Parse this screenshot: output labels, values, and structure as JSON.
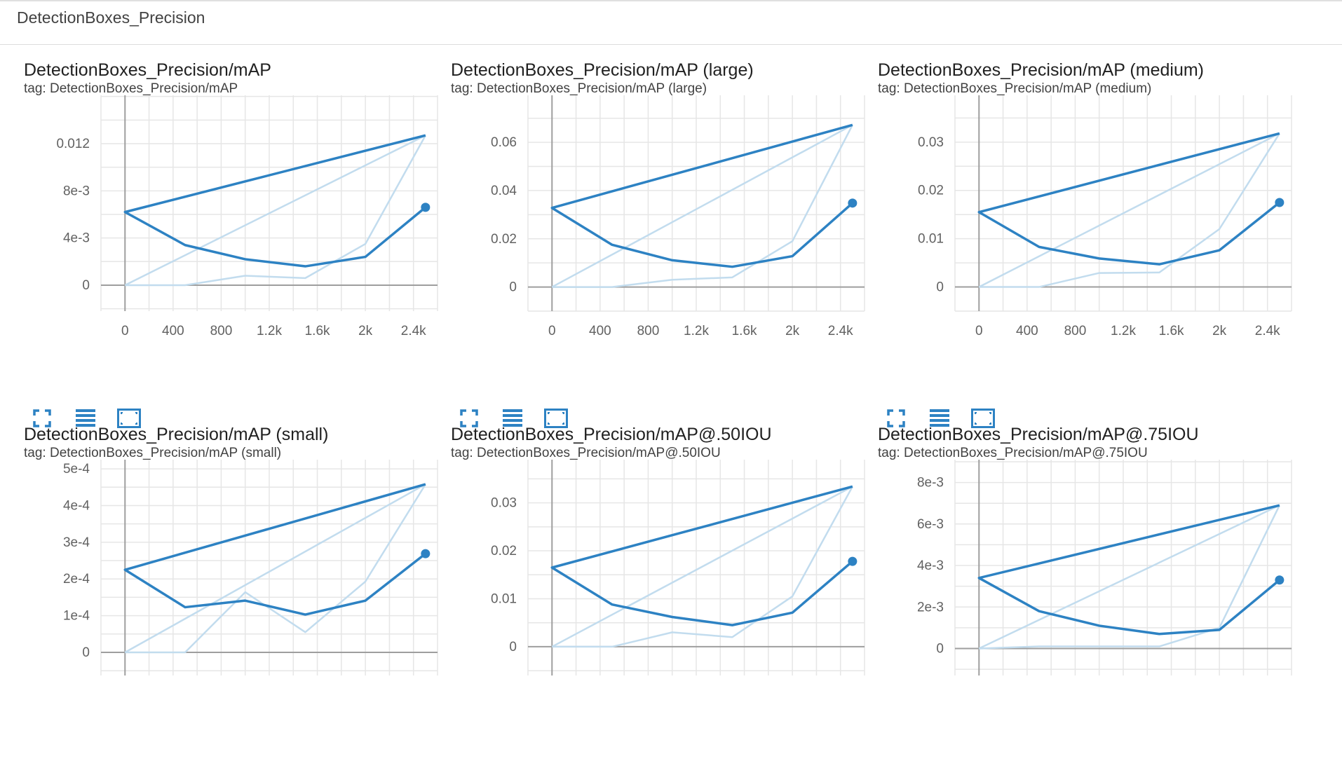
{
  "section": {
    "title": "DetectionBoxes_Precision"
  },
  "toolbar": {
    "icons": [
      "expand-icon",
      "data-table-icon",
      "fit-domain-icon"
    ]
  },
  "colors": {
    "series": "#2d82c3",
    "raw": "#c2dcee",
    "grid": "#e6e6e6",
    "axis": "#9e9e9e"
  },
  "chart_data": [
    {
      "type": "line",
      "title": "DetectionBoxes_Precision/mAP",
      "tag": "tag: DetectionBoxes_Precision/mAP",
      "x_ticks": [
        {
          "v": 0,
          "label": "0"
        },
        {
          "v": 400,
          "label": "400"
        },
        {
          "v": 800,
          "label": "800"
        },
        {
          "v": 1200,
          "label": "1.2k"
        },
        {
          "v": 1600,
          "label": "1.6k"
        },
        {
          "v": 2000,
          "label": "2k"
        },
        {
          "v": 2400,
          "label": "2.4k"
        }
      ],
      "y_ticks": [
        {
          "v": 0,
          "label": "0"
        },
        {
          "v": 0.004,
          "label": "4e-3"
        },
        {
          "v": 0.008,
          "label": "8e-3"
        },
        {
          "v": 0.012,
          "label": "0.012"
        }
      ],
      "xlim": [
        -200,
        2600
      ],
      "ylim": [
        -0.0022,
        0.0161
      ],
      "smoothed": {
        "x": [
          2500,
          0,
          500,
          1000,
          1500,
          2000,
          2500
        ],
        "y": [
          0.0127,
          0.0062,
          0.0034,
          0.0022,
          0.0016,
          0.0024,
          0.0066
        ]
      },
      "raw": [
        {
          "x": [
            0,
            2500
          ],
          "y": [
            0,
            0.0127
          ]
        },
        {
          "x": [
            0,
            500,
            1000,
            1500,
            2000,
            2500
          ],
          "y": [
            0,
            0,
            0.0008,
            0.0006,
            0.0035,
            0.0127
          ]
        }
      ]
    },
    {
      "type": "line",
      "title": "DetectionBoxes_Precision/mAP (large)",
      "tag": "tag: DetectionBoxes_Precision/mAP (large)",
      "x_ticks": [
        {
          "v": 0,
          "label": "0"
        },
        {
          "v": 400,
          "label": "400"
        },
        {
          "v": 800,
          "label": "800"
        },
        {
          "v": 1200,
          "label": "1.2k"
        },
        {
          "v": 1600,
          "label": "1.6k"
        },
        {
          "v": 2000,
          "label": "2k"
        },
        {
          "v": 2400,
          "label": "2.4k"
        }
      ],
      "y_ticks": [
        {
          "v": 0,
          "label": "0"
        },
        {
          "v": 0.02,
          "label": "0.02"
        },
        {
          "v": 0.04,
          "label": "0.04"
        },
        {
          "v": 0.06,
          "label": "0.06"
        }
      ],
      "xlim": [
        -200,
        2600
      ],
      "ylim": [
        -0.01,
        0.0795
      ],
      "smoothed": {
        "x": [
          2500,
          0,
          500,
          1000,
          1500,
          2000,
          2500
        ],
        "y": [
          0.0672,
          0.0328,
          0.0175,
          0.0111,
          0.0084,
          0.0128,
          0.0348
        ]
      },
      "raw": [
        {
          "x": [
            0,
            2500
          ],
          "y": [
            0,
            0.0672
          ]
        },
        {
          "x": [
            0,
            500,
            1000,
            1500,
            2000,
            2500
          ],
          "y": [
            0,
            0,
            0.003,
            0.004,
            0.019,
            0.0672
          ]
        }
      ]
    },
    {
      "type": "line",
      "title": "DetectionBoxes_Precision/mAP (medium)",
      "tag": "tag: DetectionBoxes_Precision/mAP (medium)",
      "x_ticks": [
        {
          "v": 0,
          "label": "0"
        },
        {
          "v": 400,
          "label": "400"
        },
        {
          "v": 800,
          "label": "800"
        },
        {
          "v": 1200,
          "label": "1.2k"
        },
        {
          "v": 1600,
          "label": "1.6k"
        },
        {
          "v": 2000,
          "label": "2k"
        },
        {
          "v": 2400,
          "label": "2.4k"
        }
      ],
      "y_ticks": [
        {
          "v": 0,
          "label": "0"
        },
        {
          "v": 0.01,
          "label": "0.01"
        },
        {
          "v": 0.02,
          "label": "0.02"
        },
        {
          "v": 0.03,
          "label": "0.03"
        }
      ],
      "xlim": [
        -200,
        2600
      ],
      "ylim": [
        -0.005,
        0.0397
      ],
      "smoothed": {
        "x": [
          2500,
          0,
          500,
          1000,
          1500,
          2000,
          2500
        ],
        "y": [
          0.0318,
          0.0155,
          0.0083,
          0.0059,
          0.0047,
          0.0076,
          0.0175
        ]
      },
      "raw": [
        {
          "x": [
            0,
            2500
          ],
          "y": [
            0,
            0.0318
          ]
        },
        {
          "x": [
            0,
            500,
            1000,
            1500,
            2000,
            2500
          ],
          "y": [
            0,
            0,
            0.0029,
            0.003,
            0.012,
            0.0318
          ]
        }
      ]
    },
    {
      "type": "line",
      "title": "DetectionBoxes_Precision/mAP (small)",
      "tag": "tag: DetectionBoxes_Precision/mAP (small)",
      "x_ticks": [
        {
          "v": 0,
          "label": ""
        },
        {
          "v": 400,
          "label": ""
        },
        {
          "v": 800,
          "label": ""
        },
        {
          "v": 1200,
          "label": ""
        },
        {
          "v": 1600,
          "label": ""
        },
        {
          "v": 2000,
          "label": ""
        },
        {
          "v": 2400,
          "label": ""
        }
      ],
      "y_ticks": [
        {
          "v": 0,
          "label": "0"
        },
        {
          "v": 0.0001,
          "label": "1e-4"
        },
        {
          "v": 0.0002,
          "label": "2e-4"
        },
        {
          "v": 0.0003,
          "label": "3e-4"
        },
        {
          "v": 0.0004,
          "label": "4e-4"
        },
        {
          "v": 0.0005,
          "label": "5e-4"
        }
      ],
      "xlim": [
        -200,
        2600
      ],
      "ylim": [
        -6.3e-05,
        0.000525
      ],
      "smoothed": {
        "x": [
          2500,
          0,
          500,
          1000,
          1500,
          2000,
          2500
        ],
        "y": [
          0.000458,
          0.000225,
          0.000123,
          0.000141,
          0.000103,
          0.000141,
          0.000269
        ]
      },
      "raw": [
        {
          "x": [
            0,
            2500
          ],
          "y": [
            0,
            0.000458
          ]
        },
        {
          "x": [
            0,
            500,
            1000,
            1500,
            2000,
            2500
          ],
          "y": [
            0,
            0,
            0.000164,
            5.5e-05,
            0.000193,
            0.000458
          ]
        }
      ]
    },
    {
      "type": "line",
      "title": "DetectionBoxes_Precision/mAP@.50IOU",
      "tag": "tag: DetectionBoxes_Precision/mAP@.50IOU",
      "x_ticks": [
        {
          "v": 0,
          "label": ""
        },
        {
          "v": 400,
          "label": ""
        },
        {
          "v": 800,
          "label": ""
        },
        {
          "v": 1200,
          "label": ""
        },
        {
          "v": 1600,
          "label": ""
        },
        {
          "v": 2000,
          "label": ""
        },
        {
          "v": 2400,
          "label": ""
        }
      ],
      "y_ticks": [
        {
          "v": 0,
          "label": "0"
        },
        {
          "v": 0.01,
          "label": "0.01"
        },
        {
          "v": 0.02,
          "label": "0.02"
        },
        {
          "v": 0.03,
          "label": "0.03"
        }
      ],
      "xlim": [
        -200,
        2600
      ],
      "ylim": [
        -0.006,
        0.039
      ],
      "smoothed": {
        "x": [
          2500,
          0,
          500,
          1000,
          1500,
          2000,
          2500
        ],
        "y": [
          0.0334,
          0.0165,
          0.0088,
          0.0062,
          0.0045,
          0.0071,
          0.0178
        ]
      },
      "raw": [
        {
          "x": [
            0,
            2500
          ],
          "y": [
            0,
            0.0334
          ]
        },
        {
          "x": [
            0,
            500,
            1000,
            1500,
            2000,
            2500
          ],
          "y": [
            0,
            0,
            0.003,
            0.002,
            0.0105,
            0.0334
          ]
        }
      ]
    },
    {
      "type": "line",
      "title": "DetectionBoxes_Precision/mAP@.75IOU",
      "tag": "tag: DetectionBoxes_Precision/mAP@.75IOU",
      "x_ticks": [
        {
          "v": 0,
          "label": ""
        },
        {
          "v": 400,
          "label": ""
        },
        {
          "v": 800,
          "label": ""
        },
        {
          "v": 1200,
          "label": ""
        },
        {
          "v": 1600,
          "label": ""
        },
        {
          "v": 2000,
          "label": ""
        },
        {
          "v": 2400,
          "label": ""
        }
      ],
      "y_ticks": [
        {
          "v": 0,
          "label": "0"
        },
        {
          "v": 0.002,
          "label": "2e-3"
        },
        {
          "v": 0.004,
          "label": "4e-3"
        },
        {
          "v": 0.006,
          "label": "6e-3"
        },
        {
          "v": 0.008,
          "label": "8e-3"
        }
      ],
      "xlim": [
        -200,
        2600
      ],
      "ylim": [
        -0.0013,
        0.0091
      ],
      "smoothed": {
        "x": [
          2500,
          0,
          500,
          1000,
          1500,
          2000,
          2500
        ],
        "y": [
          0.0069,
          0.0034,
          0.0018,
          0.0011,
          0.0007,
          0.0009,
          0.0033
        ]
      },
      "raw": [
        {
          "x": [
            0,
            2500
          ],
          "y": [
            0,
            0.0069
          ]
        },
        {
          "x": [
            0,
            500,
            1000,
            1500,
            2000,
            2500
          ],
          "y": [
            0,
            0.0001,
            0.0001,
            0.0001,
            0.001,
            0.0069
          ]
        }
      ]
    }
  ]
}
